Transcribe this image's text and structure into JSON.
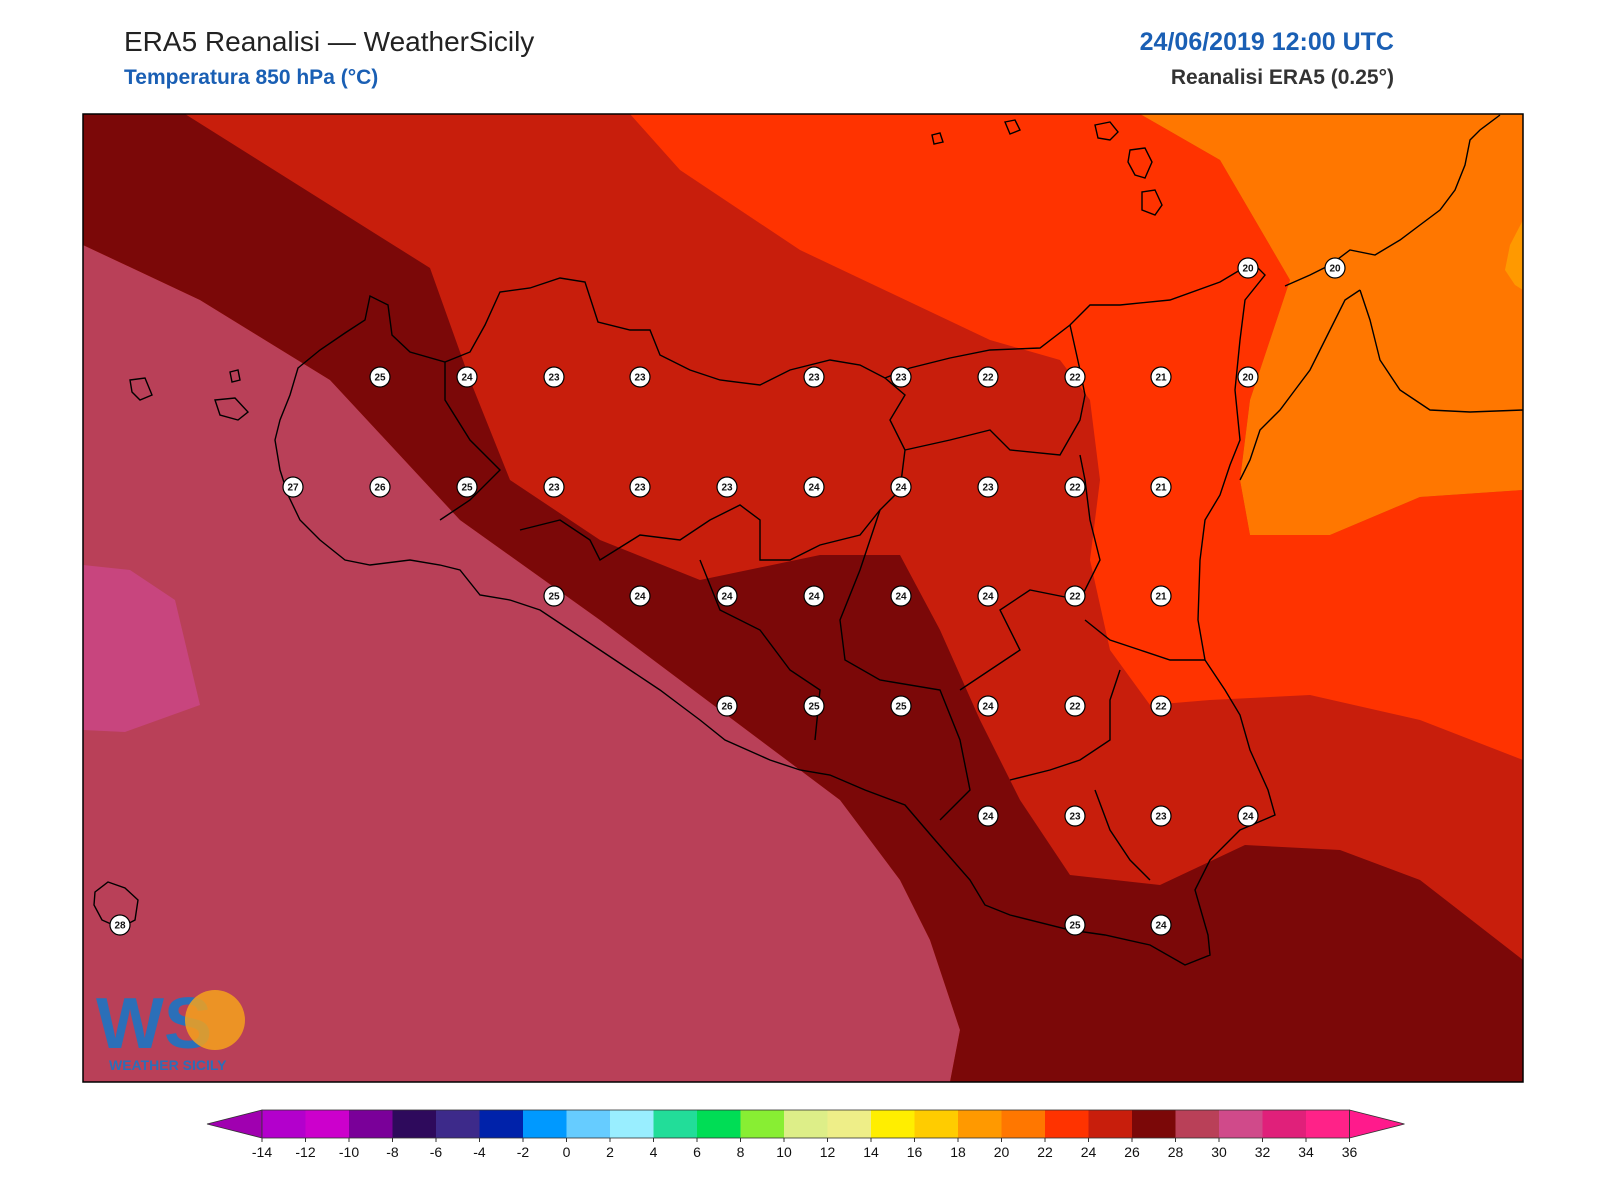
{
  "header": {
    "title": "ERA5 Reanalisi — WeatherSicily",
    "subtitle": "Temperatura 850 hPa (°C)",
    "datetime": "24/06/2019 12:00 UTC",
    "model": "Reanalisi ERA5 (0.25°)"
  },
  "logo": {
    "letters": "WS",
    "brand": "WEATHER SICILY"
  },
  "colors": {
    "band_gt28": "#c8457e",
    "band_26_28": "#b94058",
    "band_24_26": "#7b0808",
    "band_22_24": "#c81e0c",
    "band_20_22": "#ff3300",
    "band_18_20": "#ff7700",
    "band_16_18": "#ff9900",
    "coast": "#000000"
  },
  "colorbar": {
    "ticks": [
      "-14",
      "-12",
      "-10",
      "-8",
      "-6",
      "-4",
      "-2",
      "0",
      "2",
      "4",
      "6",
      "8",
      "10",
      "12",
      "14",
      "16",
      "18",
      "20",
      "22",
      "24",
      "26",
      "28",
      "30",
      "32",
      "34",
      "36"
    ],
    "colors": [
      "#b300cc",
      "#cc00cc",
      "#7a0099",
      "#2e0a5c",
      "#3d2a8a",
      "#0022aa",
      "#0099ff",
      "#66ccff",
      "#99eeff",
      "#22dd99",
      "#00dd55",
      "#88ee33",
      "#ddee88",
      "#eeee88",
      "#ffee00",
      "#ffcc00",
      "#ff9900",
      "#ff7700",
      "#ff3300",
      "#c81e0c",
      "#7b0808",
      "#b94058",
      "#d04a8a",
      "#e0207a",
      "#ff2288"
    ],
    "low_arrow": "#a000b0",
    "high_arrow": "#ff1a8c"
  },
  "map_data": {
    "station_values": [
      {
        "v": "20"
      },
      {
        "v": "20"
      },
      {
        "v": "25"
      },
      {
        "v": "24"
      },
      {
        "v": "23"
      },
      {
        "v": "23"
      },
      {
        "v": "23"
      },
      {
        "v": "23"
      },
      {
        "v": "22"
      },
      {
        "v": "22"
      },
      {
        "v": "21"
      },
      {
        "v": "20"
      },
      {
        "v": "27"
      },
      {
        "v": "26"
      },
      {
        "v": "25"
      },
      {
        "v": "23"
      },
      {
        "v": "23"
      },
      {
        "v": "23"
      },
      {
        "v": "24"
      },
      {
        "v": "24"
      },
      {
        "v": "23"
      },
      {
        "v": "22"
      },
      {
        "v": "21"
      },
      {
        "v": "25"
      },
      {
        "v": "24"
      },
      {
        "v": "24"
      },
      {
        "v": "24"
      },
      {
        "v": "24"
      },
      {
        "v": "24"
      },
      {
        "v": "22"
      },
      {
        "v": "21"
      },
      {
        "v": "26"
      },
      {
        "v": "25"
      },
      {
        "v": "25"
      },
      {
        "v": "24"
      },
      {
        "v": "22"
      },
      {
        "v": "22"
      },
      {
        "v": "24"
      },
      {
        "v": "23"
      },
      {
        "v": "23"
      },
      {
        "v": "24"
      },
      {
        "v": "28"
      },
      {
        "v": "25"
      },
      {
        "v": "24"
      }
    ]
  }
}
